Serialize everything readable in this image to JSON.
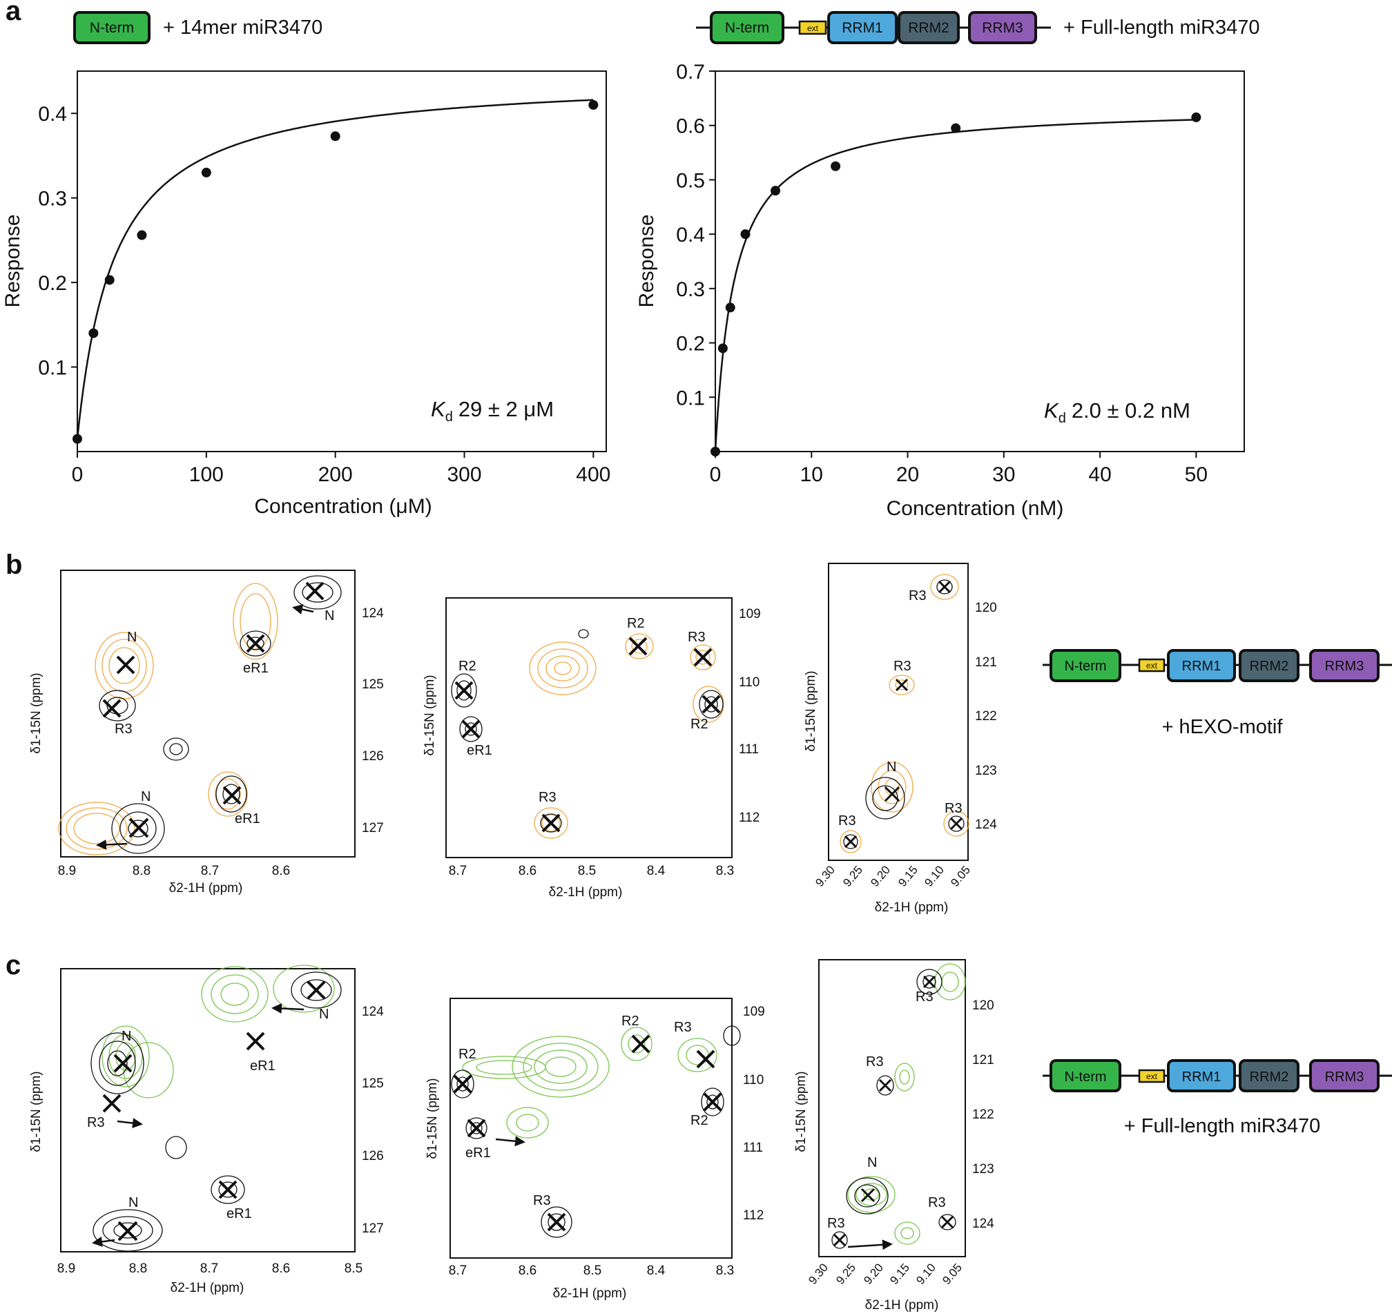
{
  "panels": {
    "a": "a",
    "b": "b",
    "c": "c"
  },
  "colors": {
    "nterm": "#35b44a",
    "ext": "#f1d22a",
    "rrm1": "#4ea8dc",
    "rrm2": "#4b6470",
    "rrm3": "#8e5cb4",
    "orange": "#f0a030",
    "green": "#72c245",
    "black": "#111111"
  },
  "domains": {
    "nterm": "N-term",
    "ext": "ext",
    "rrm1": "RRM1",
    "rrm2": "RRM2",
    "rrm3": "RRM3"
  },
  "panel_a": {
    "left_title": "+ 14mer miR3470",
    "right_title": "+ Full-length miR3470",
    "kd_left_sym": "K",
    "kd_left_sub": "d",
    "kd_left_val": "29 ± 2 μM",
    "kd_right_sym": "K",
    "kd_right_sub": "d",
    "kd_right_val": "2.0 ± 0.2 nM"
  },
  "panel_b": {
    "ligand": "+ hEXO-motif"
  },
  "panel_c": {
    "ligand": "+ Full-length miR3470"
  },
  "chart_data": [
    {
      "type": "scatter",
      "title": "",
      "xlabel": "Concentration (μM)",
      "ylabel": "Response",
      "xlim": [
        0,
        410
      ],
      "ylim": [
        0,
        0.45
      ],
      "xticks": [
        0,
        100,
        200,
        300,
        400
      ],
      "yticks": [
        0.1,
        0.2,
        0.3,
        0.4
      ],
      "x": [
        0,
        12.5,
        25,
        50,
        100,
        200,
        400
      ],
      "y": [
        0.015,
        0.14,
        0.203,
        0.256,
        0.33,
        0.373,
        0.41
      ],
      "fit": {
        "model": "one-site binding",
        "Kd": 29,
        "Bmax": 0.43,
        "offset": 0.015
      }
    },
    {
      "type": "scatter",
      "title": "",
      "xlabel": "Concentration (nM)",
      "ylabel": "Response",
      "xlim": [
        0,
        55
      ],
      "ylim": [
        0,
        0.7
      ],
      "xticks": [
        0,
        10,
        20,
        30,
        40,
        50
      ],
      "yticks": [
        0.1,
        0.2,
        0.3,
        0.4,
        0.5,
        0.6,
        0.7
      ],
      "x": [
        0,
        0.78,
        1.56,
        3.125,
        6.25,
        12.5,
        25,
        50
      ],
      "y": [
        0.0,
        0.19,
        0.265,
        0.4,
        0.48,
        0.525,
        0.595,
        0.615
      ],
      "fit": {
        "model": "one-site binding",
        "Kd": 2.0,
        "Bmax": 0.635,
        "offset": 0.0
      }
    }
  ],
  "nmr": {
    "xlabel": "δ2-1H (ppm)",
    "ylabel": "δ1-15N (ppm)",
    "p1": {
      "xticks": [
        "8.9",
        "8.8",
        "8.7",
        "8.6"
      ],
      "xticks_c": [
        "8.9",
        "8.8",
        "8.7",
        "8.6",
        "8.5"
      ],
      "yticks": [
        "124",
        "125",
        "126",
        "127"
      ],
      "labels": {
        "N_top": "N",
        "N_tr": "N",
        "eR1_a": "eR1",
        "R3": "R3",
        "N_bot": "N",
        "eR1_b": "eR1"
      }
    },
    "p2": {
      "xticks": [
        "8.7",
        "8.6",
        "8.5",
        "8.4",
        "8.3"
      ],
      "yticks": [
        "109",
        "110",
        "111",
        "112"
      ],
      "labels": {
        "R2_l": "R2",
        "eR1": "eR1",
        "R2_t": "R2",
        "R3_t": "R3",
        "R2_r": "R2",
        "R3_b": "R3"
      }
    },
    "p3": {
      "xticks": [
        "9.30",
        "9.25",
        "9.20",
        "9.15",
        "9.10",
        "9.05"
      ],
      "yticks": [
        "120",
        "121",
        "122",
        "123",
        "124"
      ],
      "labels": {
        "R3_top": "R3",
        "R3_mid": "R3",
        "N": "N",
        "R3_bl": "R3",
        "R3_br": "R3"
      }
    }
  }
}
